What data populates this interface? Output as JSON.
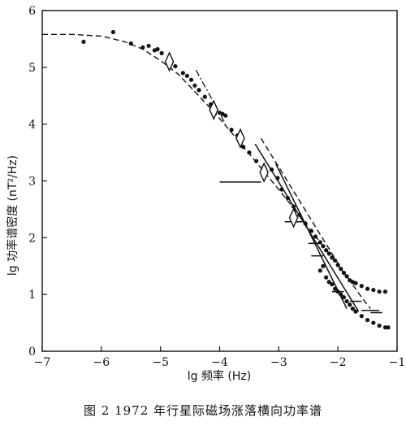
{
  "caption": "图 2   1972 年行星际磁场涨落横向功率谱",
  "chart_data": {
    "type": "scatter",
    "title": "",
    "xlabel": "lg 频率 (Hz)",
    "ylabel": "lg 功率谱密度 (nT²/Hz)",
    "xlim": [
      -7,
      -1
    ],
    "ylim": [
      0,
      6
    ],
    "x_ticks": [
      {
        "value": -7,
        "label": "−7"
      },
      {
        "value": -6,
        "label": "−6"
      },
      {
        "value": -5,
        "label": "−5"
      },
      {
        "value": -4,
        "label": "−4"
      },
      {
        "value": -3,
        "label": "−3"
      },
      {
        "value": -2,
        "label": "−2"
      },
      {
        "value": -1,
        "label": "−1"
      }
    ],
    "y_ticks": [
      {
        "value": 0,
        "label": "0"
      },
      {
        "value": 1,
        "label": "1"
      },
      {
        "value": 2,
        "label": "2"
      },
      {
        "value": 3,
        "label": "3"
      },
      {
        "value": 4,
        "label": "4"
      },
      {
        "value": 5,
        "label": "5"
      },
      {
        "value": 6,
        "label": "6"
      }
    ],
    "grid": false,
    "series": [
      {
        "style": "dots",
        "points": [
          [
            -6.3,
            5.45
          ],
          [
            -5.8,
            5.62
          ],
          [
            -5.5,
            5.42
          ],
          [
            -5.3,
            5.35
          ],
          [
            -5.2,
            5.38
          ],
          [
            -5.1,
            5.3
          ],
          [
            -5.05,
            5.32
          ],
          [
            -4.98,
            5.25
          ],
          [
            -4.85,
            5.15
          ],
          [
            -4.75,
            5.02
          ],
          [
            -4.62,
            4.9
          ],
          [
            -4.55,
            4.85
          ],
          [
            -4.48,
            4.78
          ],
          [
            -4.42,
            4.68
          ],
          [
            -4.35,
            4.6
          ],
          [
            -4.25,
            4.48
          ],
          [
            -4.15,
            4.35
          ],
          [
            -4.08,
            4.3
          ],
          [
            -4.0,
            4.2
          ],
          [
            -3.95,
            4.18
          ],
          [
            -3.9,
            4.15
          ],
          [
            -3.8,
            3.9
          ],
          [
            -3.7,
            3.8
          ],
          [
            -3.6,
            3.6
          ],
          [
            -3.5,
            3.5
          ],
          [
            -3.38,
            3.35
          ],
          [
            -3.25,
            3.25
          ],
          [
            -3.12,
            3.2
          ],
          [
            -3.02,
            3.05
          ],
          [
            -2.95,
            2.85
          ],
          [
            -2.85,
            2.7
          ],
          [
            -2.75,
            2.55
          ],
          [
            -2.65,
            2.4
          ],
          [
            -2.55,
            2.25
          ],
          [
            -2.45,
            2.12
          ],
          [
            -2.38,
            2.02
          ],
          [
            -2.3,
            1.92
          ],
          [
            -2.25,
            1.85
          ],
          [
            -2.2,
            1.78
          ],
          [
            -2.15,
            1.72
          ],
          [
            -2.1,
            1.65
          ],
          [
            -2.05,
            1.6
          ],
          [
            -2.0,
            1.52
          ],
          [
            -1.95,
            1.45
          ],
          [
            -1.9,
            1.38
          ],
          [
            -1.85,
            1.32
          ],
          [
            -1.8,
            1.25
          ],
          [
            -1.75,
            1.22
          ],
          [
            -1.7,
            1.2
          ],
          [
            -1.6,
            1.15
          ],
          [
            -1.5,
            1.1
          ],
          [
            -1.4,
            1.08
          ],
          [
            -1.3,
            1.05
          ],
          [
            -1.2,
            1.05
          ]
        ]
      },
      {
        "style": "dots",
        "points": [
          [
            -2.3,
            1.42
          ],
          [
            -2.25,
            1.5
          ],
          [
            -2.2,
            1.3
          ],
          [
            -2.15,
            1.22
          ],
          [
            -2.1,
            1.18
          ],
          [
            -2.05,
            1.1
          ],
          [
            -2.0,
            1.05
          ],
          [
            -1.95,
            1.0
          ],
          [
            -1.9,
            0.95
          ],
          [
            -1.85,
            0.88
          ],
          [
            -1.8,
            0.82
          ],
          [
            -1.75,
            0.75
          ],
          [
            -1.7,
            0.7
          ],
          [
            -1.6,
            0.62
          ],
          [
            -1.5,
            0.55
          ],
          [
            -1.4,
            0.5
          ],
          [
            -1.3,
            0.45
          ],
          [
            -1.2,
            0.42
          ],
          [
            -1.15,
            0.42
          ]
        ]
      },
      {
        "style": "dashed-curve",
        "points": [
          [
            -7.0,
            5.58
          ],
          [
            -6.5,
            5.58
          ],
          [
            -6.0,
            5.55
          ],
          [
            -5.6,
            5.45
          ],
          [
            -5.3,
            5.32
          ],
          [
            -5.0,
            5.12
          ],
          [
            -4.7,
            4.88
          ],
          [
            -4.4,
            4.55
          ],
          [
            -4.1,
            4.22
          ],
          [
            -3.8,
            3.85
          ],
          [
            -3.5,
            3.48
          ],
          [
            -3.2,
            3.1
          ],
          [
            -2.9,
            2.72
          ],
          [
            -2.6,
            2.32
          ],
          [
            -2.3,
            1.92
          ],
          [
            -2.0,
            1.52
          ],
          [
            -1.8,
            1.25
          ],
          [
            -1.6,
            0.95
          ],
          [
            -1.45,
            0.75
          ]
        ]
      },
      {
        "style": "dash-dot-line",
        "points": [
          [
            -4.4,
            4.95
          ],
          [
            -3.9,
            4.0
          ]
        ]
      },
      {
        "style": "solid-line",
        "points": [
          [
            -3.4,
            3.65
          ],
          [
            -1.65,
            0.7
          ]
        ]
      },
      {
        "style": "solid-line",
        "points": [
          [
            -3.05,
            3.3
          ],
          [
            -1.85,
            0.75
          ]
        ]
      },
      {
        "style": "dashed-line",
        "points": [
          [
            -3.3,
            3.75
          ],
          [
            -2.0,
            1.55
          ]
        ]
      },
      {
        "style": "hbar",
        "segments": [
          [
            [
              -4.0,
              -3.3
            ],
            2.98
          ],
          [
            [
              -2.9,
              -2.6
            ],
            2.28
          ],
          [
            [
              -2.5,
              -2.3
            ],
            1.9
          ],
          [
            [
              -2.45,
              -2.25
            ],
            1.68
          ],
          [
            [
              -2.1,
              -1.9
            ],
            1.05
          ],
          [
            [
              -1.8,
              -1.6
            ],
            0.88
          ],
          [
            [
              -1.6,
              -1.3
            ],
            0.72
          ],
          [
            [
              -1.45,
              -1.25
            ],
            0.68
          ]
        ]
      },
      {
        "style": "diamonds",
        "points": [
          [
            -4.85,
            5.1
          ],
          [
            -4.1,
            4.25
          ],
          [
            -3.65,
            3.75
          ],
          [
            -3.25,
            3.15
          ],
          [
            -2.75,
            2.35
          ]
        ]
      }
    ]
  }
}
